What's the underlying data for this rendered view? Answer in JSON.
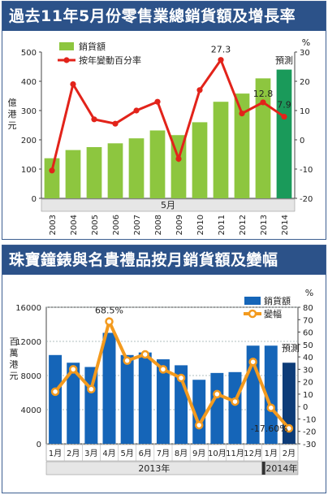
{
  "chart_data": [
    {
      "type": "bar",
      "title": "過去11年5月份零售業總銷貨額及增長率",
      "xlabel": "5月",
      "ylabel": "億港元",
      "ylabel_right": "%",
      "categories": [
        "2003",
        "2004",
        "2005",
        "2006",
        "2007",
        "2008",
        "2009",
        "2010",
        "2011",
        "2012",
        "2013",
        "2014"
      ],
      "series": [
        {
          "name": "銷貨額",
          "kind": "bar",
          "axis": "left",
          "color": "#8dc63f",
          "values": [
            137,
            165,
            175,
            188,
            205,
            232,
            216,
            260,
            330,
            358,
            410,
            440
          ]
        },
        {
          "name": "按年變動百分率",
          "kind": "line",
          "axis": "right",
          "color": "#e2231a",
          "values": [
            -10.5,
            19,
            7,
            5.5,
            10,
            13,
            -6.5,
            17,
            27.3,
            9,
            12.8,
            7.9
          ]
        }
      ],
      "ylim_left": [
        0,
        500
      ],
      "yticks_left": [
        0,
        100,
        200,
        300,
        400,
        500
      ],
      "ylim_right": [
        -20,
        30
      ],
      "yticks_right": [
        -20,
        -10,
        0,
        10,
        20,
        30
      ],
      "forecast_label": "預測",
      "forecast_color": "#1a9a5a",
      "annotations": [
        "27.3",
        "12.8",
        "7.9"
      ],
      "legend_position": "top-left",
      "grid": false
    },
    {
      "type": "bar",
      "title": "珠寶鐘錶與名貴禮品按月銷貨額及變幅",
      "xlabel_groups": [
        "2013年",
        "2014年"
      ],
      "ylabel": "百萬港元",
      "ylabel_right": "%",
      "categories": [
        "1月",
        "2月",
        "3月",
        "4月",
        "5月",
        "6月",
        "7月",
        "8月",
        "9月",
        "10月",
        "11月",
        "12月",
        "1月",
        "2月"
      ],
      "series": [
        {
          "name": "銷貨額",
          "kind": "bar",
          "axis": "left",
          "color": "#1565b8",
          "values": [
            10400,
            9500,
            9000,
            13000,
            10400,
            10700,
            9900,
            9200,
            7500,
            8300,
            8400,
            11500,
            11500,
            9500
          ]
        },
        {
          "name": "變幅",
          "kind": "line",
          "axis": "right",
          "color": "#f39a1e",
          "values": [
            12,
            30,
            14,
            68.5,
            37,
            42,
            30,
            23,
            -15,
            10,
            4,
            36,
            -1,
            -17.6
          ]
        }
      ],
      "ylim_left": [
        0,
        16000
      ],
      "yticks_left": [
        0,
        4000,
        8000,
        12000,
        16000
      ],
      "ylim_right": [
        -30,
        80
      ],
      "yticks_right": [
        -30,
        -20,
        -10,
        0,
        10,
        20,
        30,
        40,
        50,
        60,
        70,
        80
      ],
      "forecast_label": "預測",
      "forecast_color": "#0d3c78",
      "annotations": [
        "68.5%",
        "-17.60%"
      ],
      "legend_position": "top-right",
      "grid": true
    }
  ]
}
